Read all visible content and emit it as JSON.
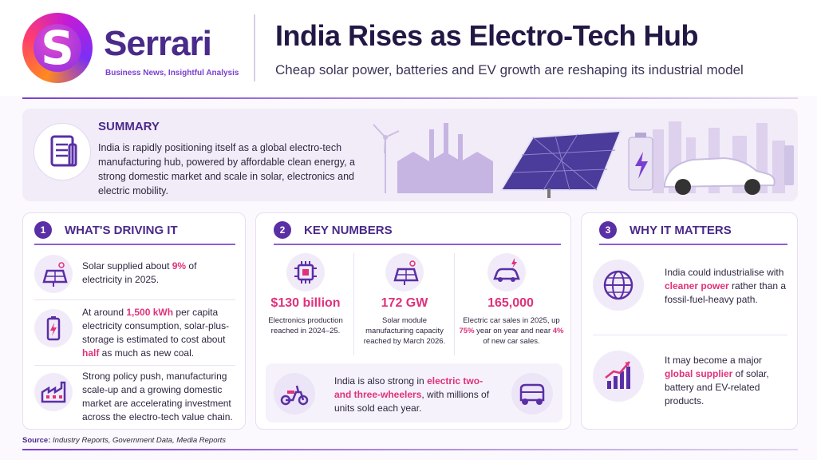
{
  "brand": {
    "logo_letter": "S",
    "name": "Serrari",
    "tagline": "Business News, Insightful Analysis"
  },
  "header": {
    "title": "India Rises as Electro-Tech Hub",
    "subtitle": "Cheap solar power, batteries and EV growth are reshaping its industrial model"
  },
  "summary": {
    "title": "SUMMARY",
    "text": "India is rapidly positioning itself as a global electro-tech manufacturing hub, powered by affordable clean energy, a strong domestic market and scale in solar, electronics and electric mobility."
  },
  "drivers": {
    "number": "1",
    "title": "WHAT'S DRIVING IT",
    "item1": {
      "a": "Solar supplied about ",
      "h": "9%",
      "b": " of electricity in 2025."
    },
    "item2": {
      "a": "At around ",
      "h1": "1,500 kWh",
      "b": " per capita electricity consumption, solar-plus-storage is estimated to cost about ",
      "h2": "half",
      "c": " as much as new coal."
    },
    "item3": {
      "text": "Strong policy push, manufacturing scale-up and a growing domestic market are accelerating investment across the electro-tech value chain."
    }
  },
  "numbers": {
    "number": "2",
    "title": "KEY NUMBERS",
    "stat1": {
      "value": "$130 billion",
      "label": "Electronics production reached in 2024–25."
    },
    "stat2": {
      "value": "172 GW",
      "label": "Solar module manufacturing capacity reached by March 2026."
    },
    "stat3": {
      "value": "165,000",
      "a": "Electric car sales in 2025, up ",
      "h1": "75%",
      "b": " year on year and near ",
      "h2": "4%",
      "c": " of new car sales."
    },
    "note": {
      "a": "India is also strong in ",
      "h": "electric two- and three-wheelers",
      "b": ", with millions of units sold each year."
    }
  },
  "matters": {
    "number": "3",
    "title": "WHY IT MATTERS",
    "item1": {
      "a": "India could industrialise with ",
      "h": "cleaner power",
      "b": " rather than a fossil-fuel-heavy path."
    },
    "item2": {
      "a": "It may become a major ",
      "h": "global supplier",
      "b": " of solar, battery and EV-related products."
    }
  },
  "source": {
    "label": "Source:",
    "text": "Industry Reports, Government Data, Media Reports"
  },
  "icons": [
    "logo",
    "document-icon",
    "solar-panel-icon",
    "battery-icon",
    "factory-icon",
    "chip-icon",
    "solar-panel-icon",
    "ev-car-icon",
    "scooter-icon",
    "rickshaw-icon",
    "globe-icon",
    "growth-chart-icon"
  ],
  "colors": {
    "primary": "#4a2a8a",
    "accent": "#e0317a",
    "purple": "#7a3fd0"
  }
}
